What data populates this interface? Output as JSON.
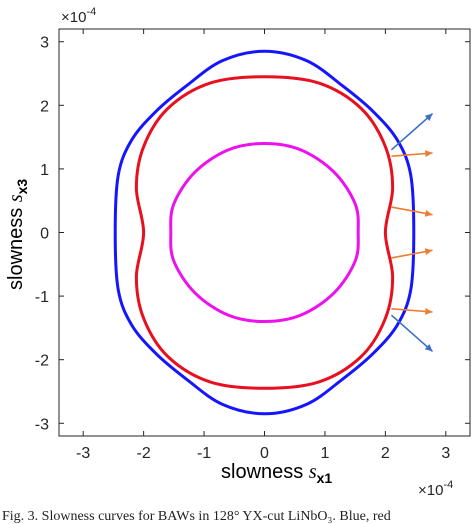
{
  "chart_data": {
    "type": "line",
    "xlabel": "slowness",
    "xlabel_symbol": "s",
    "xlabel_subscript": "x1",
    "ylabel": "slowness",
    "ylabel_symbol": "s",
    "ylabel_subscript": "x3",
    "x_exponent": "×10",
    "x_exponent_power": "-4",
    "y_exponent": "×10",
    "y_exponent_power": "-4",
    "xlim": [
      -3.4,
      3.4
    ],
    "ylim": [
      -3.2,
      3.2
    ],
    "xticks": [
      "-3",
      "-2",
      "-1",
      "0",
      "1",
      "2",
      "3"
    ],
    "yticks": [
      "-3",
      "-2",
      "-1",
      "0",
      "1",
      "2",
      "3"
    ],
    "grid": false,
    "series": [
      {
        "color": "#1515ff",
        "points": [
          [
            0,
            2.85
          ],
          [
            0.7,
            2.7
          ],
          [
            1.3,
            2.3
          ],
          [
            1.8,
            1.9
          ],
          [
            2.2,
            1.45
          ],
          [
            2.42,
            0.9
          ],
          [
            2.47,
            0
          ],
          [
            2.42,
            -0.9
          ],
          [
            2.2,
            -1.45
          ],
          [
            1.8,
            -1.9
          ],
          [
            1.3,
            -2.3
          ],
          [
            0.7,
            -2.7
          ],
          [
            0,
            -2.85
          ],
          [
            -0.7,
            -2.7
          ],
          [
            -1.3,
            -2.3
          ],
          [
            -1.8,
            -1.9
          ],
          [
            -2.2,
            -1.45
          ],
          [
            -2.42,
            -0.9
          ],
          [
            -2.47,
            0
          ],
          [
            -2.42,
            0.9
          ],
          [
            -2.2,
            1.45
          ],
          [
            -1.8,
            1.9
          ],
          [
            -1.3,
            2.3
          ],
          [
            -0.7,
            2.7
          ]
        ]
      },
      {
        "color": "#e8101e",
        "points": [
          [
            0,
            2.45
          ],
          [
            0.9,
            2.35
          ],
          [
            1.6,
            1.95
          ],
          [
            2.0,
            1.35
          ],
          [
            2.12,
            0.7
          ],
          [
            2.0,
            0
          ],
          [
            2.12,
            -0.7
          ],
          [
            2.0,
            -1.35
          ],
          [
            1.6,
            -1.95
          ],
          [
            0.9,
            -2.35
          ],
          [
            0,
            -2.45
          ],
          [
            -0.9,
            -2.35
          ],
          [
            -1.6,
            -1.95
          ],
          [
            -2.0,
            -1.35
          ],
          [
            -2.12,
            -0.7
          ],
          [
            -2.0,
            0
          ],
          [
            -2.12,
            0.7
          ],
          [
            -2.0,
            1.35
          ],
          [
            -1.6,
            1.95
          ],
          [
            -0.9,
            2.35
          ]
        ]
      },
      {
        "color": "#ee10ee",
        "points": [
          [
            0,
            1.4
          ],
          [
            0.6,
            1.3
          ],
          [
            1.15,
            0.95
          ],
          [
            1.5,
            0.45
          ],
          [
            1.55,
            0
          ],
          [
            1.5,
            -0.45
          ],
          [
            1.15,
            -0.95
          ],
          [
            0.6,
            -1.3
          ],
          [
            0,
            -1.4
          ],
          [
            -0.6,
            -1.3
          ],
          [
            -1.15,
            -0.95
          ],
          [
            -1.5,
            -0.45
          ],
          [
            -1.55,
            0
          ],
          [
            -1.5,
            0.45
          ],
          [
            -1.15,
            0.95
          ],
          [
            -0.6,
            1.3
          ]
        ]
      }
    ],
    "arrows": [
      {
        "color": "#3a6fc4",
        "from": [
          2.1,
          1.3
        ],
        "to": [
          2.78,
          1.87
        ]
      },
      {
        "color": "#ed7d31",
        "from": [
          2.1,
          1.2
        ],
        "to": [
          2.78,
          1.25
        ]
      },
      {
        "color": "#ed7d31",
        "from": [
          2.1,
          0.4
        ],
        "to": [
          2.78,
          0.28
        ]
      },
      {
        "color": "#ed7d31",
        "from": [
          2.1,
          -0.4
        ],
        "to": [
          2.78,
          -0.28
        ]
      },
      {
        "color": "#ed7d31",
        "from": [
          2.1,
          -1.2
        ],
        "to": [
          2.78,
          -1.25
        ]
      },
      {
        "color": "#3a6fc4",
        "from": [
          2.1,
          -1.3
        ],
        "to": [
          2.78,
          -1.87
        ]
      }
    ]
  },
  "caption": "Fig. 3.   Slowness curves for BAWs in 128° YX-cut LiNbO₃. Blue, red"
}
